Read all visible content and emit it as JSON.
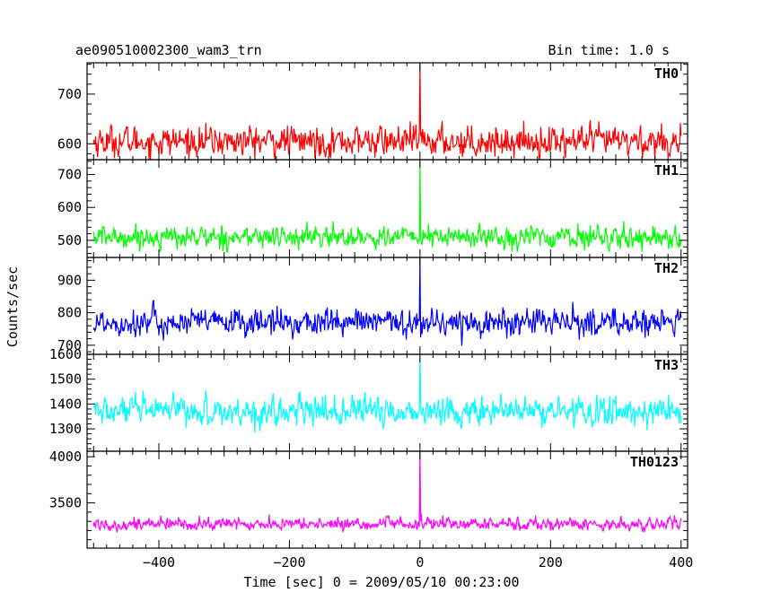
{
  "chart_data": {
    "type": "line",
    "title": "ae090510002300_wam3_trn",
    "bin_time": "Bin time: 1.0 s",
    "xlabel": "Time [sec] 0 = 2009/05/10 00:23:00",
    "ylabel": "Counts/sec",
    "xlim": [
      -510,
      410
    ],
    "x_ticks": [
      -400,
      -200,
      0,
      200,
      400
    ],
    "x_tick_labels": [
      "−400",
      "−200",
      "0",
      "200",
      "400"
    ],
    "x_range": [
      -500,
      400
    ],
    "grid": false,
    "panels": [
      {
        "name": "TH0",
        "color": "#ff0000",
        "ylim": [
          568,
          763
        ],
        "yticks": [
          600,
          700
        ],
        "ytick_labels": [
          "600",
          "700"
        ],
        "mean": 605,
        "sigma": 20,
        "peak": 770,
        "low_clip": 568,
        "high_clip": 690
      },
      {
        "name": "TH1",
        "color": "#00ff00",
        "ylim": [
          448,
          745
        ],
        "yticks": [
          500,
          600,
          700
        ],
        "ytick_labels": [
          "500",
          "600",
          "700"
        ],
        "mean": 510,
        "sigma": 22,
        "peak": 745,
        "low_clip": 465,
        "high_clip": 625
      },
      {
        "name": "TH2",
        "color": "#0000ff",
        "ylim": [
          672,
          970
        ],
        "yticks": [
          700,
          800,
          900
        ],
        "ytick_labels": [
          "700",
          "800",
          "900"
        ],
        "mean": 770,
        "sigma": 28,
        "peak": 970,
        "low_clip": 680,
        "high_clip": 890
      },
      {
        "name": "TH3",
        "color": "#00ffff",
        "ylim": [
          1210,
          1600
        ],
        "yticks": [
          1300,
          1400,
          1500,
          1600
        ],
        "ytick_labels": [
          "1300",
          "1400",
          "1500",
          "1600"
        ],
        "mean": 1370,
        "sigma": 38,
        "peak": 1600,
        "low_clip": 1215,
        "high_clip": 1530
      },
      {
        "name": "TH0123",
        "color": "#ff00ff",
        "ylim": [
          3010,
          4060
        ],
        "yticks": [
          3500,
          4000
        ],
        "ytick_labels": [
          "3500",
          "4000"
        ],
        "mean": 3270,
        "sigma": 45,
        "peak": 4060,
        "low_clip": 3050,
        "high_clip": 3480
      }
    ]
  }
}
